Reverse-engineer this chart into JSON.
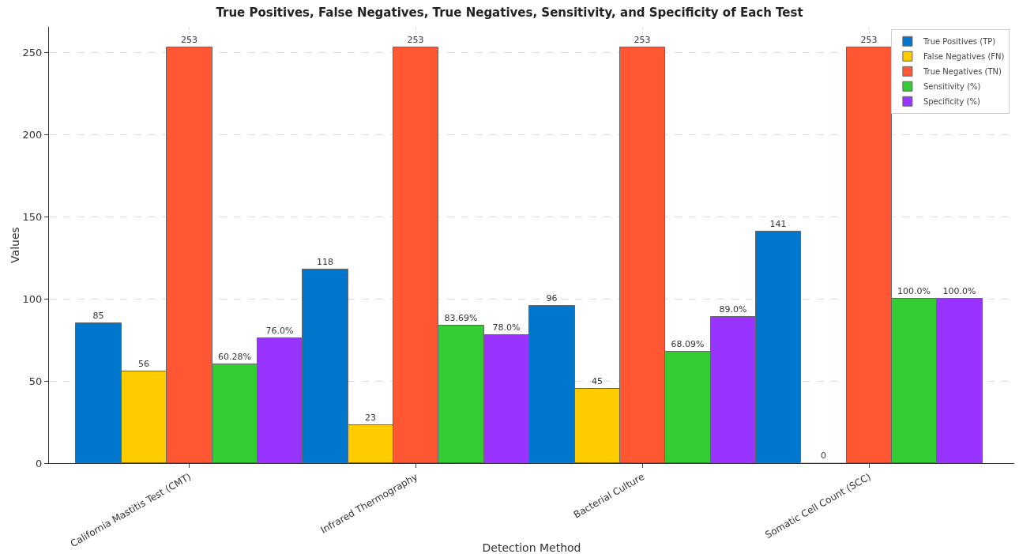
{
  "chart_data": {
    "type": "bar",
    "title": "True Positives, False Negatives, True Negatives, Sensitivity, and Specificity of Each Test",
    "xlabel": "Detection Method",
    "ylabel": "Values",
    "categories": [
      "California Mastitis Test (CMT)",
      "Infrared Thermography",
      "Bacterial Culture",
      "Somatic Cell Count (SCC)"
    ],
    "series": [
      {
        "name": "True Positives (TP)",
        "color": "#0077cc",
        "values": [
          85,
          118,
          96,
          141
        ],
        "value_labels": [
          "85",
          "118",
          "96",
          "141"
        ]
      },
      {
        "name": "False Negatives (FN)",
        "color": "#ffcc00",
        "values": [
          56,
          23,
          45,
          0
        ],
        "value_labels": [
          "56",
          "23",
          "45",
          "0"
        ]
      },
      {
        "name": "True Negatives (TN)",
        "color": "#ff5733",
        "values": [
          253,
          253,
          253,
          253
        ],
        "value_labels": [
          "253",
          "253",
          "253",
          "253"
        ]
      },
      {
        "name": "Sensitivity (%)",
        "color": "#33cc33",
        "values": [
          60.28,
          83.69,
          68.09,
          100
        ],
        "value_labels": [
          "60.28%",
          "83.69%",
          "68.09%",
          "100.0%"
        ]
      },
      {
        "name": "Specificity (%)",
        "color": "#9933ff",
        "values": [
          76,
          78,
          89,
          100
        ],
        "value_labels": [
          "76.0%",
          "78.0%",
          "89.0%",
          "100.0%"
        ]
      }
    ],
    "ylim": [
      0,
      265.65
    ],
    "yticks": [
      0,
      50,
      100,
      150,
      200,
      250
    ],
    "grid": true,
    "legend": "top right"
  }
}
